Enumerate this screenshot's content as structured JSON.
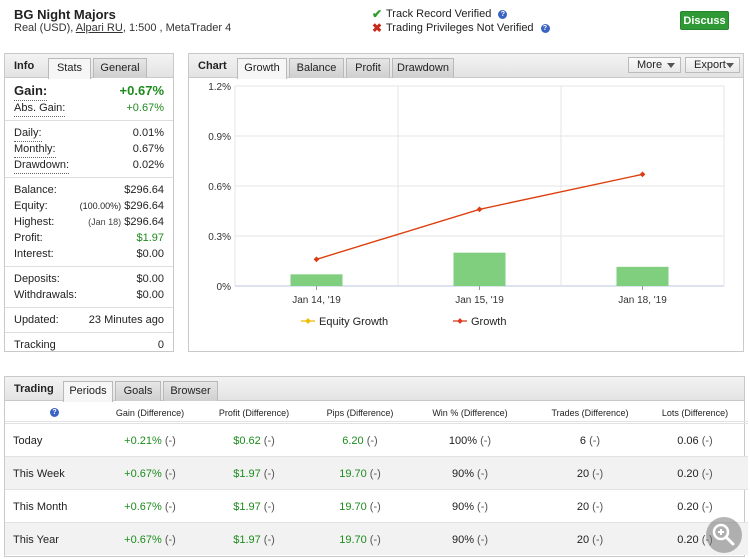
{
  "header": {
    "title": "BG Night Majors",
    "sub_prefix": "Real (USD), ",
    "broker": "Alpari RU",
    "sub_suffix": ", 1:500 , MetaTrader 4",
    "track_record": "Track Record Verified",
    "privileges": "Trading Privileges Not Verified",
    "discuss": "Discuss"
  },
  "info": {
    "title": "Info",
    "tabs": [
      "Stats",
      "General"
    ],
    "gain_label": "Gain:",
    "gain_value": "+0.67%",
    "abs_gain_label": "Abs. Gain:",
    "abs_gain_value": "+0.67%",
    "daily_label": "Daily:",
    "daily_value": "0.01%",
    "monthly_label": "Monthly:",
    "monthly_value": "0.67%",
    "drawdown_label": "Drawdown:",
    "drawdown_value": "0.02%",
    "balance_label": "Balance:",
    "balance_value": "$296.64",
    "equity_label": "Equity:",
    "equity_note": "(100.00%)",
    "equity_value": "$296.64",
    "highest_label": "Highest:",
    "highest_note": "(Jan 18)",
    "highest_value": "$296.64",
    "profit_label": "Profit:",
    "profit_value": "$1.97",
    "interest_label": "Interest:",
    "interest_value": "$0.00",
    "deposits_label": "Deposits:",
    "deposits_value": "$0.00",
    "withdrawals_label": "Withdrawals:",
    "withdrawals_value": "$0.00",
    "updated_label": "Updated:",
    "updated_value": "23 Minutes ago",
    "tracking_label": "Tracking",
    "tracking_value": "0"
  },
  "chart_panel": {
    "title": "Chart",
    "tabs": [
      "Growth",
      "Balance",
      "Profit",
      "Drawdown"
    ],
    "more": "More",
    "export": "Export"
  },
  "chart_data": {
    "type": "line",
    "categories": [
      "Jan 14, '19",
      "Jan 15, '19",
      "Jan 18, '19"
    ],
    "y_ticks": [
      "1.2%",
      "0.9%",
      "0.6%",
      "0.3%",
      "0%"
    ],
    "ylim": [
      0,
      1.2
    ],
    "series": [
      {
        "name": "Equity Growth",
        "values": [
          0.16,
          0.46,
          0.67
        ],
        "color": "#f2b900"
      },
      {
        "name": "Growth",
        "values": [
          0.16,
          0.46,
          0.67
        ],
        "color": "#dd3b1c"
      }
    ],
    "bars": {
      "values": [
        0.07,
        0.2,
        0.115
      ],
      "color": "#7fcf7f"
    },
    "legend_position": "bottom",
    "grid": true
  },
  "trading": {
    "title": "Trading",
    "tabs": [
      "Periods",
      "Goals",
      "Browser"
    ],
    "columns": [
      "Gain (Difference)",
      "Profit (Difference)",
      "Pips (Difference)",
      "Win % (Difference)",
      "Trades (Difference)",
      "Lots (Difference)"
    ],
    "diff": "(-)",
    "rows": [
      {
        "period": "Today",
        "gain": "+0.21%",
        "profit": "$0.62",
        "pips": "6.20",
        "win": "100%",
        "trades": "6",
        "lots": "0.06"
      },
      {
        "period": "This Week",
        "gain": "+0.67%",
        "profit": "$1.97",
        "pips": "19.70",
        "win": "90%",
        "trades": "20",
        "lots": "0.20"
      },
      {
        "period": "This Month",
        "gain": "+0.67%",
        "profit": "$1.97",
        "pips": "19.70",
        "win": "90%",
        "trades": "20",
        "lots": "0.20"
      },
      {
        "period": "This Year",
        "gain": "+0.67%",
        "profit": "$1.97",
        "pips": "19.70",
        "win": "90%",
        "trades": "20",
        "lots": "0.20"
      }
    ]
  },
  "colors": {
    "accent_green": "#2f9a35",
    "positive": "#1d8c1d",
    "growth_line": "#dd3b1c",
    "bars": "#7fcf7f"
  },
  "icons": [
    "check-icon",
    "cross-icon",
    "help-icon",
    "dropdown-icon",
    "magnifier-icon"
  ]
}
